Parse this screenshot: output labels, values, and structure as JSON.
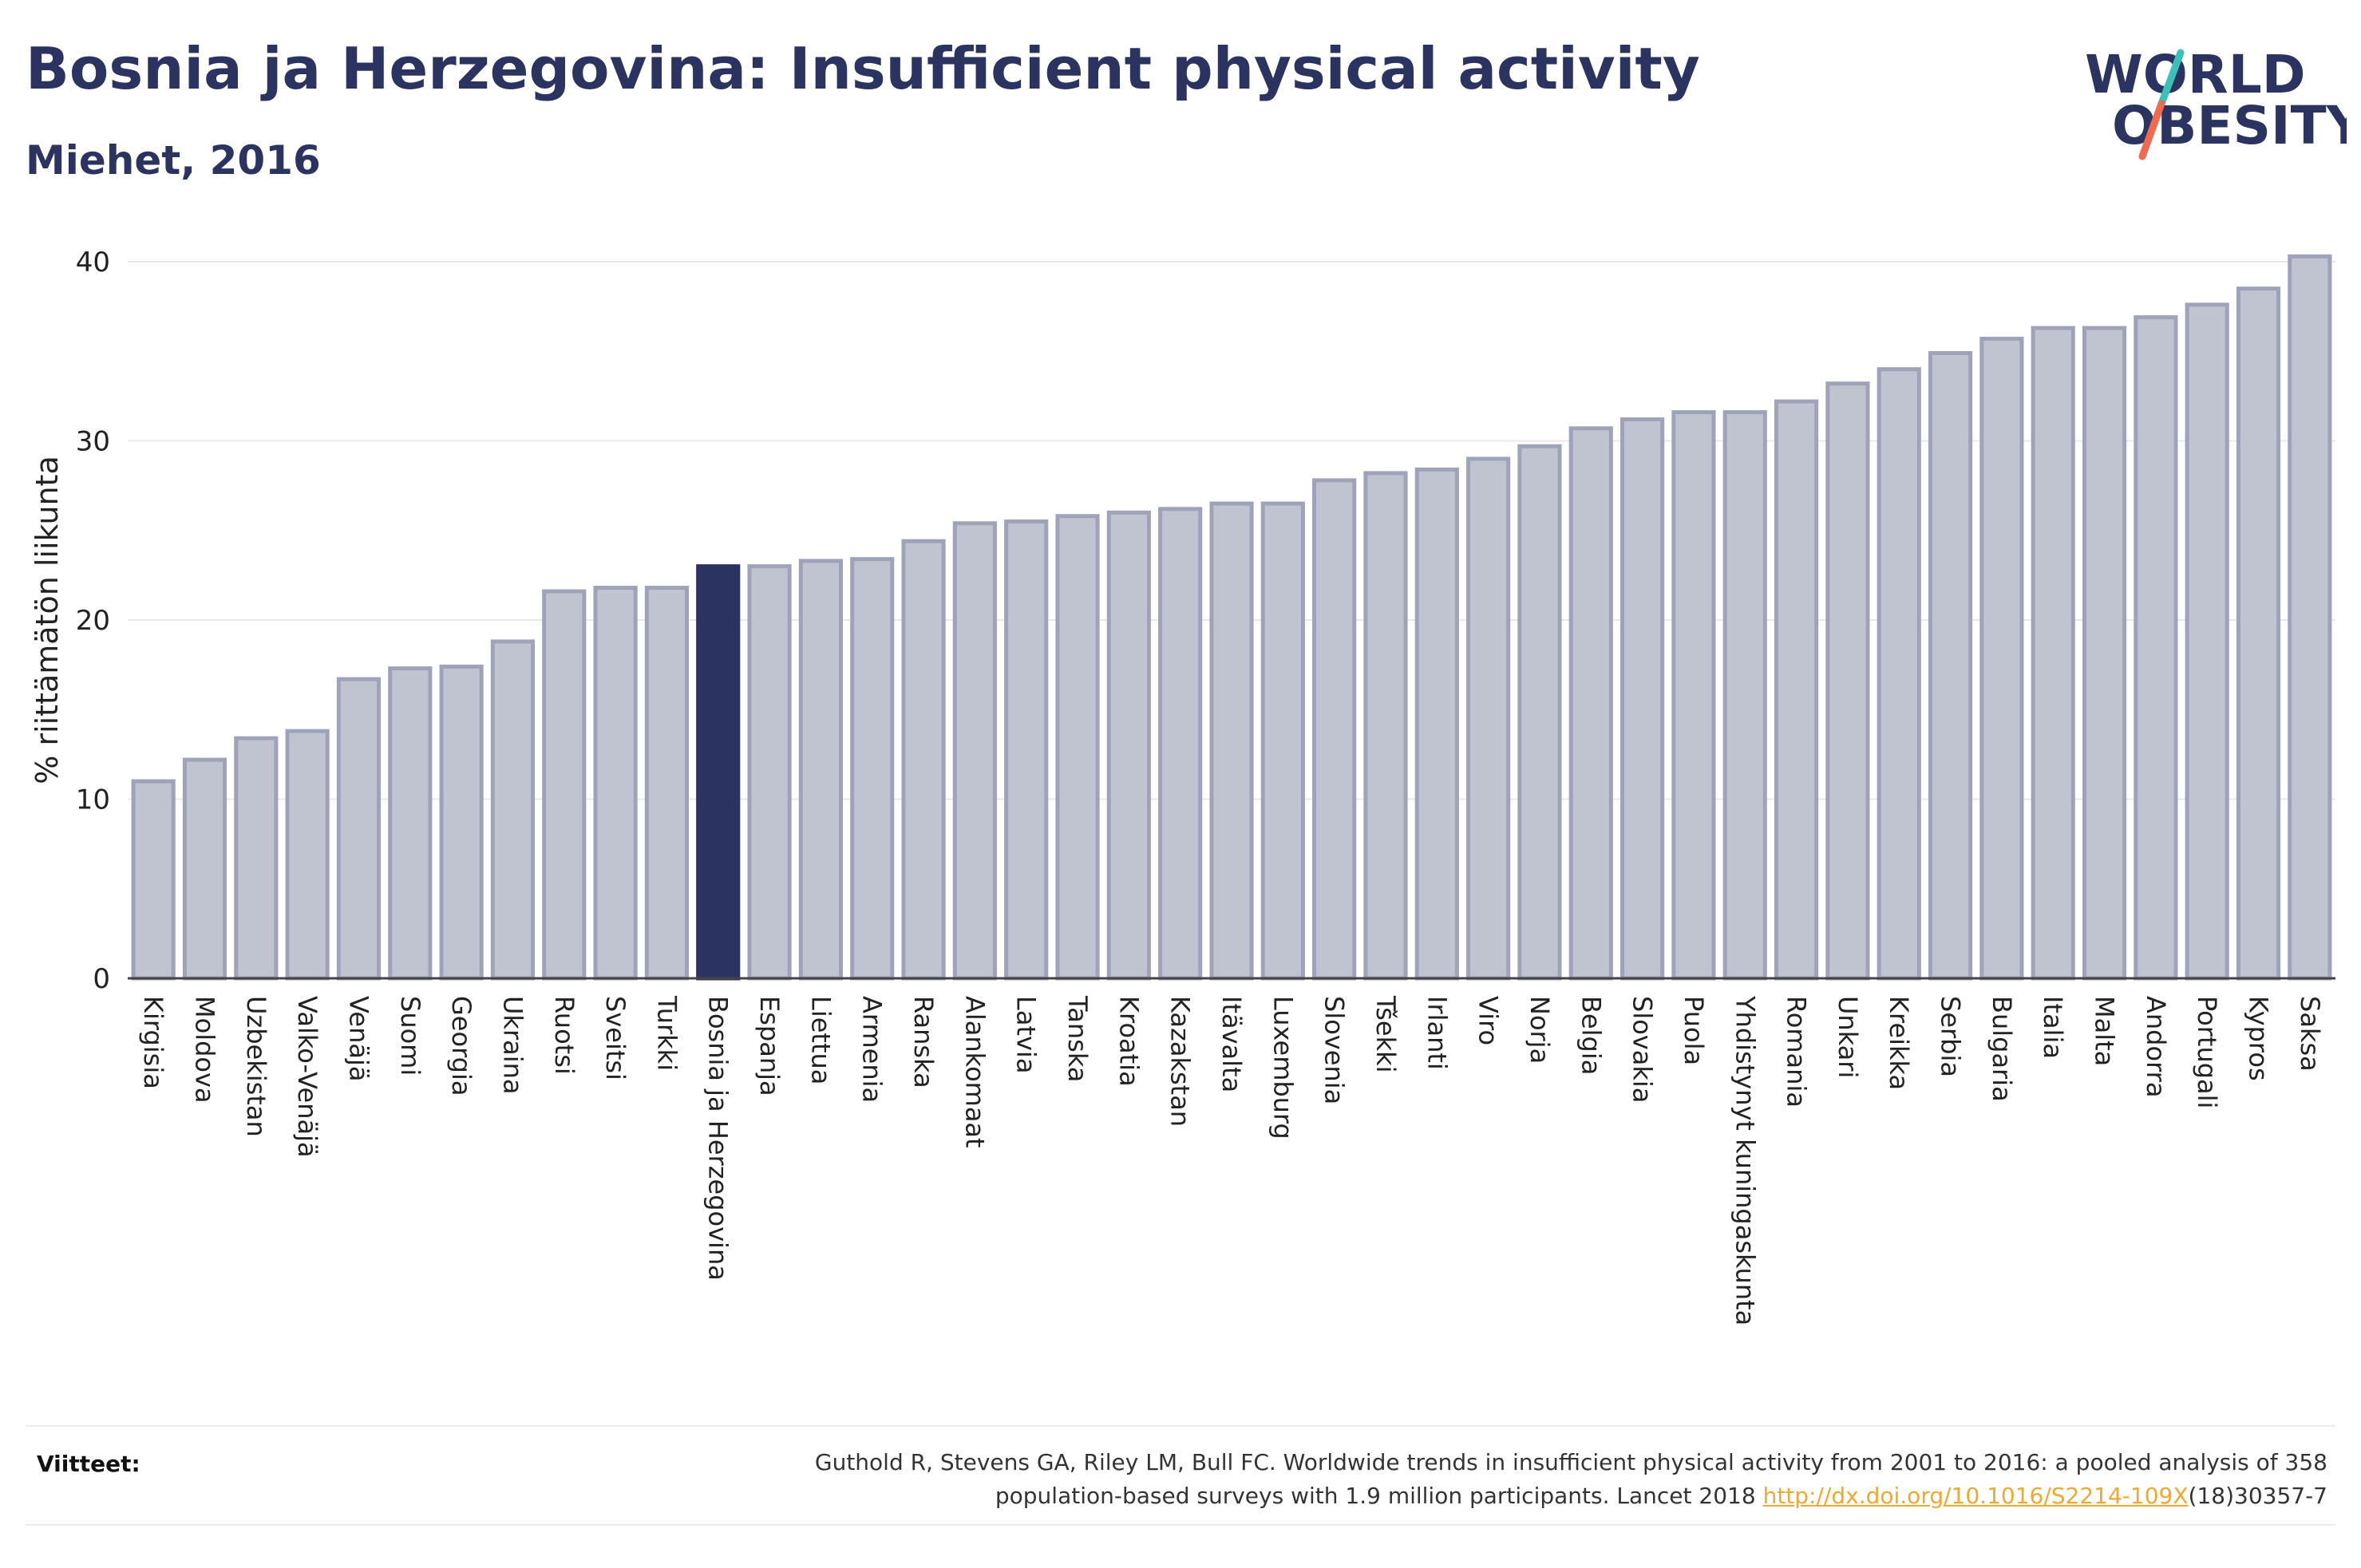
{
  "header": {
    "title": "Bosnia ja Herzegovina: Insufficient physical activity",
    "subtitle": "Miehet, 2016"
  },
  "logo": {
    "line1": "WORLD",
    "line2": "OBESITY",
    "colors": {
      "text": "#2b3460",
      "slash_top": "#3cc0b8",
      "slash_bottom": "#f06a50"
    }
  },
  "chart_data": {
    "type": "bar",
    "title": "",
    "xlabel": "",
    "ylabel": "% riittämätön liikunta",
    "ylim": [
      0,
      40
    ],
    "yticks": [
      0,
      10,
      20,
      30,
      40
    ],
    "grid": true,
    "highlight": "Bosnia ja Herzegovina",
    "colors": {
      "bar": "#c0c4d1",
      "bar_border": "#9ea3b9",
      "highlight": "#2b3460"
    },
    "categories": [
      "Kirgisia",
      "Moldova",
      "Uzbekistan",
      "Valko-Venäjä",
      "Venäjä",
      "Suomi",
      "Georgia",
      "Ukraina",
      "Ruotsi",
      "Sveitsi",
      "Turkki",
      "Bosnia ja Herzegovina",
      "Espanja",
      "Liettua",
      "Armenia",
      "Ranska",
      "Alankomaat",
      "Latvia",
      "Tanska",
      "Kroatia",
      "Kazakstan",
      "Itävalta",
      "Luxemburg",
      "Slovenia",
      "Tšekki",
      "Irlanti",
      "Viro",
      "Norja",
      "Belgia",
      "Slovakia",
      "Puola",
      "Yhdistynyt kuningaskunta",
      "Romania",
      "Unkari",
      "Kreikka",
      "Serbia",
      "Bulgaria",
      "Italia",
      "Malta",
      "Andorra",
      "Portugali",
      "Kypros",
      "Saksa"
    ],
    "values": [
      11.0,
      12.2,
      13.4,
      13.8,
      16.7,
      17.3,
      17.4,
      18.8,
      21.6,
      21.8,
      21.8,
      23.0,
      23.0,
      23.3,
      23.4,
      24.4,
      25.4,
      25.5,
      25.8,
      26.0,
      26.2,
      26.5,
      26.5,
      27.8,
      28.2,
      28.4,
      29.0,
      29.7,
      30.7,
      31.2,
      31.6,
      31.6,
      32.2,
      33.2,
      34.0,
      34.9,
      35.7,
      36.3,
      36.3,
      36.9,
      37.6,
      38.5,
      40.3
    ]
  },
  "references": {
    "label": "Viitteet:",
    "text_line1": "Guthold R, Stevens GA, Riley LM, Bull FC. Worldwide trends in insufficient physical activity from 2001 to 2016: a pooled analysis of 358",
    "text_line2_prefix": "population-based surveys with 1.9 million participants. Lancet 2018 ",
    "link_text": "http://dx.doi.org/10.1016/S2214-109X",
    "text_line2_suffix": "(18)30357-7"
  }
}
